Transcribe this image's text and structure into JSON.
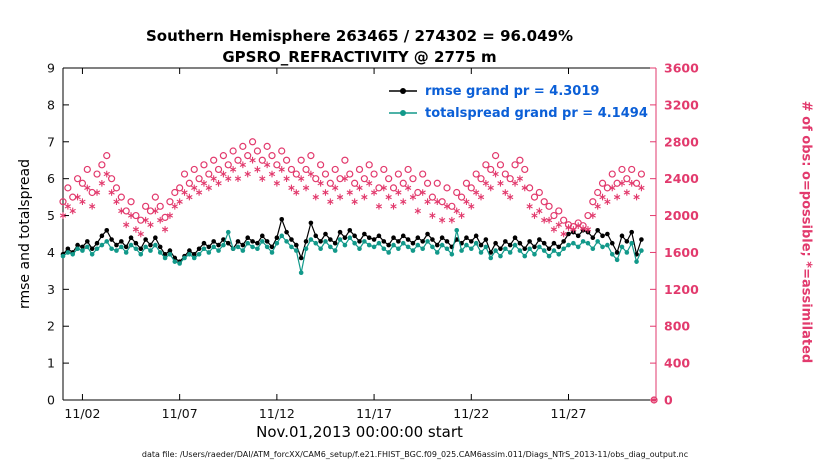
{
  "title": {
    "line1": "Southern Hemisphere 263465 / 274302 = 96.049%",
    "line2": "GPSRO_REFRACTIVITY @ 2775 m"
  },
  "axes": {
    "left_label": "rmse and totalspread",
    "right_label": "# of obs: o=possible; *=assimilated",
    "x_label": "Nov.01,2013 00:00:00 start",
    "left_ticks": [
      0,
      1,
      2,
      3,
      4,
      5,
      6,
      7,
      8,
      9
    ],
    "right_ticks": [
      0,
      400,
      800,
      1200,
      1600,
      2000,
      2400,
      2800,
      3200,
      3600
    ],
    "x_ticks": [
      {
        "value": 2,
        "label": "11/02"
      },
      {
        "value": 7,
        "label": "11/07"
      },
      {
        "value": 12,
        "label": "11/12"
      },
      {
        "value": 17,
        "label": "11/17"
      },
      {
        "value": 22,
        "label": "11/22"
      },
      {
        "value": 27,
        "label": "11/27"
      }
    ],
    "xlim": [
      1,
      31.5
    ],
    "ylim_left": [
      0,
      9
    ],
    "ylim_right": [
      0,
      3600
    ]
  },
  "legend": [
    {
      "name": "rmse",
      "label": "rmse grand pr = 4.3019",
      "color": "#000000"
    },
    {
      "name": "totalspread",
      "label": "totalspread grand pr = 4.1494",
      "color": "#12998a"
    }
  ],
  "colors": {
    "obs_pink": "#e23a6d",
    "teal": "#12998a",
    "black": "#000000",
    "legend_text": "#0b5fd7",
    "axis": "#000000"
  },
  "footer": {
    "data_file": "data file: /Users/raeder/DAI/ATM_forcXX/CAM6_setup/f.e21.FHIST_BGC.f09_025.CAM6assim.011/Diags_NTrS_2013-11/obs_diag_output.nc"
  },
  "chart_data": {
    "type": "line",
    "title": "GPSRO_REFRACTIVITY @ 2775 m",
    "x_unit": "day of Nov 2013 (1 = Nov 1 00:00, 6-hourly bins)",
    "xlim": [
      1,
      31.5
    ],
    "ylim_left": [
      0,
      9
    ],
    "ylim_right": [
      0,
      3600
    ],
    "grid": false,
    "legend_position": "top-center-inside",
    "x": [
      1,
      1.25,
      1.5,
      1.75,
      2,
      2.25,
      2.5,
      2.75,
      3,
      3.25,
      3.5,
      3.75,
      4,
      4.25,
      4.5,
      4.75,
      5,
      5.25,
      5.5,
      5.75,
      6,
      6.25,
      6.5,
      6.75,
      7,
      7.25,
      7.5,
      7.75,
      8,
      8.25,
      8.5,
      8.75,
      9,
      9.25,
      9.5,
      9.75,
      10,
      10.25,
      10.5,
      10.75,
      11,
      11.25,
      11.5,
      11.75,
      12,
      12.25,
      12.5,
      12.75,
      13,
      13.25,
      13.5,
      13.75,
      14,
      14.25,
      14.5,
      14.75,
      15,
      15.25,
      15.5,
      15.75,
      16,
      16.25,
      16.5,
      16.75,
      17,
      17.25,
      17.5,
      17.75,
      18,
      18.25,
      18.5,
      18.75,
      19,
      19.25,
      19.5,
      19.75,
      20,
      20.25,
      20.5,
      20.75,
      21,
      21.25,
      21.5,
      21.75,
      22,
      22.25,
      22.5,
      22.75,
      23,
      23.25,
      23.5,
      23.75,
      24,
      24.25,
      24.5,
      24.75,
      25,
      25.25,
      25.5,
      25.75,
      26,
      26.25,
      26.5,
      26.75,
      27,
      27.25,
      27.5,
      27.75,
      28,
      28.25,
      28.5,
      28.75,
      29,
      29.25,
      29.5,
      29.75,
      30,
      30.25,
      30.5,
      30.75
    ],
    "series": [
      {
        "name": "rmse",
        "axis": "left",
        "marker": "filled-circle",
        "color": "#000000",
        "grand_mean": 4.3019,
        "values": [
          3.95,
          4.1,
          4.0,
          4.2,
          4.15,
          4.3,
          4.1,
          4.25,
          4.45,
          4.6,
          4.35,
          4.2,
          4.3,
          4.15,
          4.4,
          4.25,
          4.1,
          4.35,
          4.2,
          4.4,
          4.15,
          3.95,
          4.05,
          3.85,
          3.75,
          3.9,
          4.05,
          3.95,
          4.1,
          4.25,
          4.15,
          4.3,
          4.2,
          4.35,
          4.25,
          4.1,
          4.3,
          4.2,
          4.4,
          4.3,
          4.25,
          4.45,
          4.3,
          4.15,
          4.4,
          4.9,
          4.55,
          4.35,
          4.2,
          3.85,
          4.3,
          4.8,
          4.45,
          4.3,
          4.5,
          4.35,
          4.25,
          4.55,
          4.4,
          4.6,
          4.45,
          4.3,
          4.5,
          4.4,
          4.35,
          4.45,
          4.3,
          4.2,
          4.4,
          4.3,
          4.45,
          4.35,
          4.25,
          4.4,
          4.3,
          4.5,
          4.35,
          4.2,
          4.4,
          4.3,
          4.15,
          4.35,
          4.25,
          4.4,
          4.3,
          4.45,
          4.2,
          4.35,
          4.0,
          4.25,
          4.1,
          4.3,
          4.2,
          4.4,
          4.25,
          4.1,
          4.3,
          4.15,
          4.35,
          4.25,
          4.1,
          4.25,
          4.15,
          4.3,
          4.5,
          4.55,
          4.45,
          4.6,
          4.55,
          4.4,
          4.6,
          4.45,
          4.5,
          4.25,
          4.0,
          4.45,
          4.3,
          4.55,
          3.95,
          4.35
        ]
      },
      {
        "name": "totalspread",
        "axis": "left",
        "marker": "filled-circle",
        "color": "#12998a",
        "grand_mean": 4.1494,
        "values": [
          3.9,
          4.0,
          3.95,
          4.1,
          4.05,
          4.15,
          3.95,
          4.1,
          4.2,
          4.3,
          4.1,
          4.05,
          4.15,
          4.0,
          4.2,
          4.1,
          3.95,
          4.15,
          4.05,
          4.2,
          4.0,
          3.85,
          3.95,
          3.75,
          3.7,
          3.85,
          3.95,
          3.85,
          3.95,
          4.1,
          4.0,
          4.15,
          4.05,
          4.2,
          4.55,
          4.1,
          4.15,
          4.05,
          4.25,
          4.15,
          4.1,
          4.3,
          4.15,
          4.0,
          4.25,
          4.45,
          4.3,
          4.15,
          4.05,
          3.45,
          4.1,
          4.35,
          4.25,
          4.1,
          4.3,
          4.15,
          4.05,
          4.35,
          4.2,
          4.4,
          4.25,
          4.1,
          4.3,
          4.2,
          4.15,
          4.25,
          4.1,
          4.0,
          4.2,
          4.1,
          4.25,
          4.15,
          4.05,
          4.2,
          4.1,
          4.3,
          4.15,
          4.0,
          4.2,
          4.1,
          3.95,
          4.6,
          4.05,
          4.2,
          4.1,
          4.25,
          4.0,
          4.15,
          3.85,
          4.05,
          3.9,
          4.1,
          4.0,
          4.2,
          4.05,
          3.9,
          4.1,
          3.95,
          4.15,
          4.05,
          3.9,
          4.05,
          3.95,
          4.1,
          4.2,
          4.25,
          4.15,
          4.3,
          4.25,
          4.1,
          4.3,
          4.15,
          4.2,
          3.95,
          3.8,
          4.15,
          4.0,
          4.25,
          3.75,
          4.05
        ]
      },
      {
        "name": "possible",
        "axis": "right",
        "marker": "open-circle",
        "color": "#e23a6d",
        "values": [
          2150,
          2300,
          2200,
          2400,
          2350,
          2500,
          2250,
          2450,
          2550,
          2650,
          2400,
          2300,
          2200,
          2050,
          2150,
          2000,
          1950,
          2100,
          2050,
          2200,
          2100,
          1980,
          2150,
          2250,
          2300,
          2450,
          2350,
          2500,
          2400,
          2550,
          2450,
          2600,
          2500,
          2650,
          2550,
          2700,
          2600,
          2750,
          2650,
          2800,
          2700,
          2600,
          2750,
          2650,
          2550,
          2700,
          2600,
          2500,
          2450,
          2600,
          2500,
          2650,
          2400,
          2550,
          2450,
          2350,
          2500,
          2400,
          2600,
          2450,
          2350,
          2500,
          2400,
          2550,
          2450,
          2300,
          2500,
          2400,
          2300,
          2450,
          2350,
          2500,
          2400,
          2250,
          2450,
          2350,
          2200,
          2350,
          2150,
          2300,
          2100,
          2250,
          2200,
          2350,
          2300,
          2450,
          2400,
          2550,
          2500,
          2650,
          2550,
          2450,
          2400,
          2550,
          2600,
          2500,
          2300,
          2200,
          2250,
          2150,
          2100,
          2000,
          2050,
          1950,
          1900,
          1880,
          1920,
          1890,
          2000,
          2150,
          2250,
          2350,
          2300,
          2450,
          2350,
          2500,
          2400,
          2500,
          2350,
          2450
        ]
      },
      {
        "name": "assimilated",
        "axis": "right",
        "marker": "asterisk",
        "color": "#e23a6d",
        "values": [
          2000,
          2100,
          2050,
          2200,
          2150,
          2300,
          2100,
          2250,
          2350,
          2450,
          2250,
          2150,
          2050,
          1900,
          2000,
          1850,
          1800,
          1950,
          1900,
          2050,
          1950,
          1850,
          2000,
          2100,
          2150,
          2250,
          2200,
          2300,
          2250,
          2350,
          2300,
          2400,
          2350,
          2450,
          2400,
          2500,
          2400,
          2550,
          2450,
          2600,
          2500,
          2400,
          2550,
          2450,
          2350,
          2500,
          2400,
          2300,
          2250,
          2400,
          2300,
          2450,
          2200,
          2350,
          2250,
          2150,
          2300,
          2200,
          2400,
          2250,
          2150,
          2300,
          2200,
          2350,
          2250,
          2100,
          2300,
          2200,
          2100,
          2250,
          2150,
          2300,
          2200,
          2050,
          2250,
          2150,
          2000,
          2150,
          1950,
          2100,
          1950,
          2050,
          2000,
          2150,
          2100,
          2250,
          2200,
          2350,
          2300,
          2450,
          2350,
          2250,
          2200,
          2350,
          2400,
          2300,
          2100,
          2000,
          2050,
          1950,
          1950,
          1850,
          1900,
          1800,
          1870,
          1850,
          1890,
          1860,
          1850,
          2000,
          2100,
          2200,
          2150,
          2300,
          2200,
          2350,
          2250,
          2350,
          2200,
          2300
        ]
      }
    ],
    "final_zero_point": {
      "x": 31.4,
      "possible": 0,
      "assimilated": 0
    }
  }
}
